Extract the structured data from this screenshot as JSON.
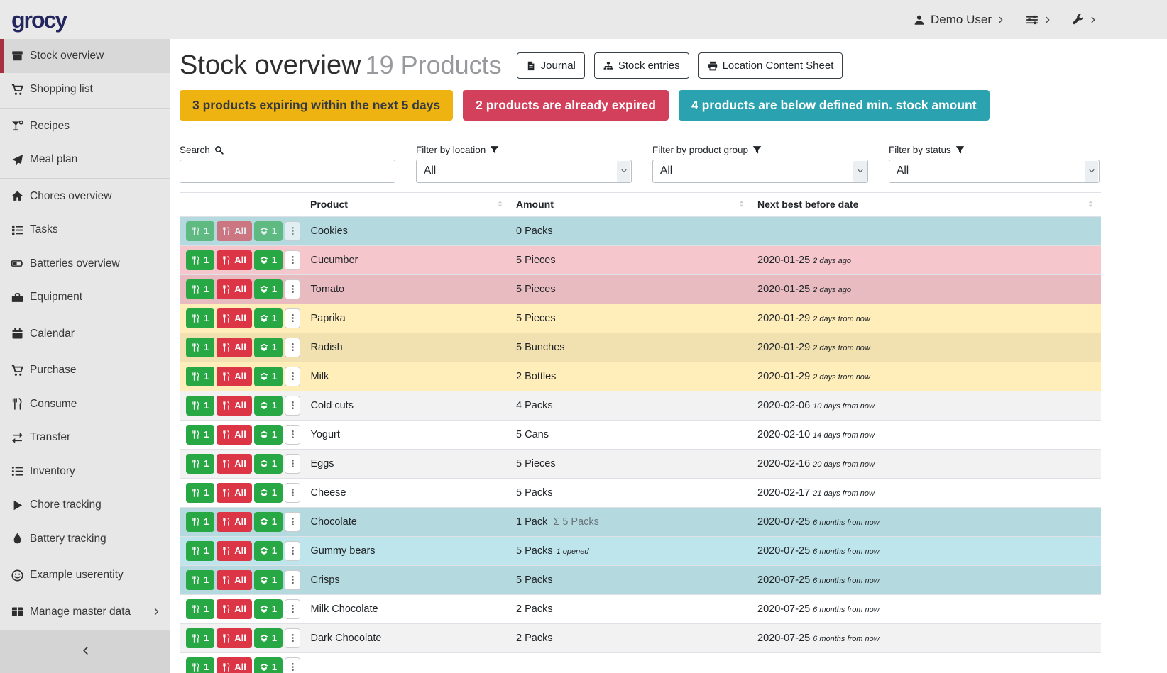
{
  "header": {
    "logo": "grocy",
    "user_label": "Demo User"
  },
  "sidebar": {
    "items": [
      {
        "label": "Stock overview",
        "icon": "box",
        "active": true
      },
      {
        "label": "Shopping list",
        "icon": "cart",
        "divider_after": true
      },
      {
        "label": "Recipes",
        "icon": "cocktail"
      },
      {
        "label": "Meal plan",
        "icon": "paper-plane",
        "divider_after": true
      },
      {
        "label": "Chores overview",
        "icon": "home"
      },
      {
        "label": "Tasks",
        "icon": "tasks"
      },
      {
        "label": "Batteries overview",
        "icon": "battery"
      },
      {
        "label": "Equipment",
        "icon": "toolbox",
        "divider_after": true
      },
      {
        "label": "Calendar",
        "icon": "calendar",
        "divider_after": true
      },
      {
        "label": "Purchase",
        "icon": "cart"
      },
      {
        "label": "Consume",
        "icon": "utensils"
      },
      {
        "label": "Transfer",
        "icon": "exchange"
      },
      {
        "label": "Inventory",
        "icon": "list"
      },
      {
        "label": "Chore tracking",
        "icon": "play"
      },
      {
        "label": "Battery tracking",
        "icon": "tint",
        "divider_after": true
      },
      {
        "label": "Example userentity",
        "icon": "smile",
        "divider_after": true
      },
      {
        "label": "Manage master data",
        "icon": "table",
        "submenu": true
      }
    ]
  },
  "page": {
    "title": "Stock overview",
    "subtitle": "19 Products",
    "buttons": [
      {
        "label": "Journal",
        "icon": "journal"
      },
      {
        "label": "Stock entries",
        "icon": "sitemap"
      },
      {
        "label": "Location Content Sheet",
        "icon": "print"
      }
    ],
    "alerts": [
      {
        "text": "3 products expiring within the next 5 days",
        "type": "warning"
      },
      {
        "text": "2 products are already expired",
        "type": "danger"
      },
      {
        "text": "4 products are below defined min. stock amount",
        "type": "belowmin"
      }
    ],
    "filters": [
      {
        "label": "Search",
        "icon": "search",
        "type": "input",
        "value": ""
      },
      {
        "label": "Filter by location",
        "icon": "filter",
        "type": "select",
        "value": "All"
      },
      {
        "label": "Filter by product group",
        "icon": "filter",
        "type": "select",
        "value": "All"
      },
      {
        "label": "Filter by status",
        "icon": "filter",
        "type": "select",
        "value": "All"
      }
    ],
    "table": {
      "columns": [
        "",
        "Product",
        "Amount",
        "Next best before date"
      ],
      "row_buttons": {
        "consume_one": "1",
        "consume_all": "All",
        "open_one": "1"
      },
      "rows": [
        {
          "product": "Cookies",
          "amount": "0 Packs",
          "date": "",
          "date_ago": "",
          "status": "info",
          "disabled": true
        },
        {
          "product": "Cucumber",
          "amount": "5 Pieces",
          "date": "2020-01-25",
          "date_ago": "2 days ago",
          "status": "danger"
        },
        {
          "product": "Tomato",
          "amount": "5 Pieces",
          "date": "2020-01-25",
          "date_ago": "2 days ago",
          "status": "danger"
        },
        {
          "product": "Paprika",
          "amount": "5 Pieces",
          "date": "2020-01-29",
          "date_ago": "2 days from now",
          "status": "warning"
        },
        {
          "product": "Radish",
          "amount": "5 Bunches",
          "date": "2020-01-29",
          "date_ago": "2 days from now",
          "status": "warning"
        },
        {
          "product": "Milk",
          "amount": "2 Bottles",
          "date": "2020-01-29",
          "date_ago": "2 days from now",
          "status": "warning"
        },
        {
          "product": "Cold cuts",
          "amount": "4 Packs",
          "date": "2020-02-06",
          "date_ago": "10 days from now",
          "status": ""
        },
        {
          "product": "Yogurt",
          "amount": "5 Cans",
          "date": "2020-02-10",
          "date_ago": "14 days from now",
          "status": ""
        },
        {
          "product": "Eggs",
          "amount": "5 Pieces",
          "date": "2020-02-16",
          "date_ago": "20 days from now",
          "status": ""
        },
        {
          "product": "Cheese",
          "amount": "5 Packs",
          "date": "2020-02-17",
          "date_ago": "21 days from now",
          "status": ""
        },
        {
          "product": "Chocolate",
          "amount": "1 Pack",
          "amount_sum": "Σ 5 Packs",
          "date": "2020-07-25",
          "date_ago": "6 months from now",
          "status": "info"
        },
        {
          "product": "Gummy bears",
          "amount": "5 Packs",
          "amount_opened": "1 opened",
          "date": "2020-07-25",
          "date_ago": "6 months from now",
          "status": "info"
        },
        {
          "product": "Crisps",
          "amount": "5 Packs",
          "date": "2020-07-25",
          "date_ago": "6 months from now",
          "status": "info"
        },
        {
          "product": "Milk Chocolate",
          "amount": "2 Packs",
          "date": "2020-07-25",
          "date_ago": "6 months from now",
          "status": ""
        },
        {
          "product": "Dark Chocolate",
          "amount": "2 Packs",
          "date": "2020-07-25",
          "date_ago": "6 months from now",
          "status": ""
        },
        {
          "product": "",
          "amount": "",
          "date": "",
          "date_ago": "",
          "status": "",
          "partial": true
        }
      ]
    }
  },
  "colors": {
    "brand_logo": "#24265e",
    "alert_warning_bg": "#eeb211",
    "alert_danger_bg": "#d3405c",
    "alert_belowmin_bg": "#2aa2af",
    "row_info_bg": "#bee5eb",
    "row_danger_bg": "#f5c6cb",
    "row_warning_bg": "#ffeeba",
    "button_green": "#28a745",
    "button_red": "#dc3545",
    "sidebar_active_accent": "#a72f3f"
  }
}
